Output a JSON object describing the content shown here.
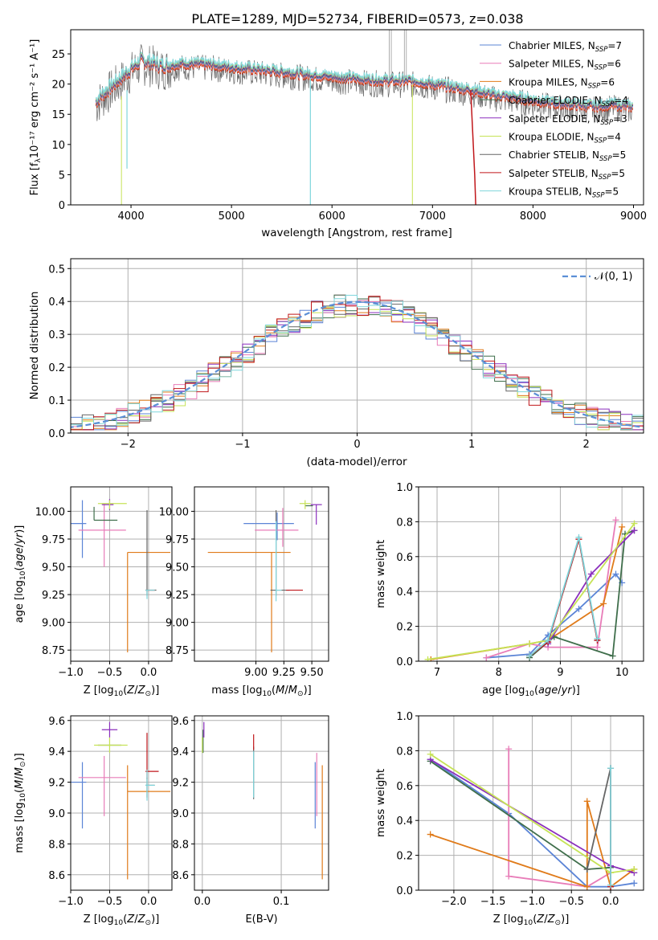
{
  "figure_title": "PLATE=1289, MJD=52734, FIBERID=0573, z=0.038",
  "colors": {
    "Chabrier MILES": "#5b84d6",
    "Salpeter MILES": "#e87cb8",
    "Kroupa MILES": "#e07b1a",
    "Chabrier ELODIE": "#3f6e4b",
    "Salpeter ELODIE": "#8b2fbd",
    "Kroupa ELODIE": "#c6e356",
    "Chabrier STELIB": "#666666",
    "Salpeter STELIB": "#c0171b",
    "Kroupa STELIB": "#7fd6dc",
    "grid": "#b0b0b0"
  },
  "chart_data": [
    {
      "type": "line",
      "xlabel": "wavelength [Angstrom, rest frame]",
      "ylabel": "Flux [fλ10⁻¹⁷ erg cm⁻² s⁻¹ A⁻¹]",
      "xlim": [
        3400,
        9100
      ],
      "ylim": [
        0,
        29
      ],
      "xticks": [
        4000,
        5000,
        6000,
        7000,
        8000,
        9000
      ],
      "yticks": [
        0,
        5,
        10,
        15,
        20,
        25
      ],
      "grid": false,
      "legend_position": "top-right",
      "legend": [
        {
          "name": "Chabrier MILES",
          "sub": "SSP",
          "n": "7"
        },
        {
          "name": "Salpeter MILES",
          "sub": "SSP",
          "n": "6"
        },
        {
          "name": "Kroupa MILES",
          "sub": "SSP",
          "n": "6"
        },
        {
          "name": "Chabrier ELODIE",
          "sub": "SSP",
          "n": "4"
        },
        {
          "name": "Salpeter ELODIE",
          "sub": "SSP",
          "n": "3"
        },
        {
          "name": "Kroupa ELODIE",
          "sub": "SSP",
          "n": "4"
        },
        {
          "name": "Chabrier STELIB",
          "sub": "SSP",
          "n": "5"
        },
        {
          "name": "Salpeter STELIB",
          "sub": "SSP",
          "n": "5"
        },
        {
          "name": "Kroupa STELIB",
          "sub": "SSP",
          "n": "5"
        }
      ],
      "spectrum_anchor": {
        "x": [
          3650,
          3700,
          3800,
          3900,
          4000,
          4100,
          4200,
          4300,
          4500,
          4800,
          5000,
          5200,
          5500,
          5800,
          6000,
          6300,
          6500,
          6800,
          7000,
          7200,
          7400,
          7600,
          7800,
          8000,
          8200,
          8400,
          8600,
          8800,
          9000
        ],
        "y": [
          17,
          18,
          19.5,
          21,
          22.5,
          23.8,
          23.6,
          23.0,
          23.4,
          23.2,
          22.8,
          22.5,
          22.0,
          21.5,
          21.2,
          20.8,
          20.6,
          20.5,
          20.0,
          19.5,
          19.0,
          18.2,
          17.8,
          17.3,
          16.8,
          16.6,
          16.3,
          16.6,
          16.2
        ]
      }
    },
    {
      "type": "histogram",
      "xlabel": "(data-model)/error",
      "ylabel": "Normed distribution",
      "xlim": [
        -2.5,
        2.5
      ],
      "ylim": [
        0,
        0.53
      ],
      "xticks": [
        -2,
        -1,
        0,
        1,
        2
      ],
      "yticks": [
        0.0,
        0.1,
        0.2,
        0.3,
        0.4,
        0.5
      ],
      "grid": true,
      "legend_position": "top-right",
      "legend": [
        "𝒩(0, 1)"
      ]
    },
    {
      "type": "errorbar",
      "xlabel": "Z [log10(Z/Z⊙)]",
      "ylabel": "age  [log10(age/yr)]",
      "xlim": [
        -1.0,
        0.3
      ],
      "ylim": [
        8.65,
        10.22
      ],
      "xticks": [
        -1.0,
        -0.5,
        0.0
      ],
      "yticks": [
        8.75,
        9.0,
        9.25,
        9.5,
        9.75,
        10.0
      ],
      "grid": true,
      "points": [
        {
          "series": "Chabrier MILES",
          "x": -0.85,
          "y": 9.89,
          "xerr": [
            0.85,
            0.05
          ],
          "yerr": [
            0.31,
            0.21
          ]
        },
        {
          "series": "Salpeter MILES",
          "x": -0.57,
          "y": 9.83,
          "xerr": [
            0.33,
            0.28
          ],
          "yerr": [
            0.33,
            0.24
          ]
        },
        {
          "series": "Kroupa MILES",
          "x": -0.27,
          "y": 9.63,
          "xerr": [
            0.0,
            0.55
          ],
          "yerr": [
            0.9,
            0.0
          ]
        },
        {
          "series": "Chabrier ELODIE",
          "x": -0.7,
          "y": 9.92,
          "xerr": [
            0.0,
            0.3
          ],
          "yerr": [
            0.0,
            0.12
          ]
        },
        {
          "series": "Salpeter ELODIE",
          "x": -0.5,
          "y": 10.06,
          "xerr": [
            0.1,
            0.05
          ],
          "yerr": [
            0.05,
            0.05
          ]
        },
        {
          "series": "Kroupa ELODIE",
          "x": -0.5,
          "y": 10.07,
          "xerr": [
            0.15,
            0.22
          ],
          "yerr": [
            0.05,
            0.03
          ]
        },
        {
          "series": "Chabrier STELIB",
          "x": -0.02,
          "y": 9.29,
          "xerr": [
            0.02,
            0.12
          ],
          "yerr": [
            0.05,
            0.72
          ]
        },
        {
          "series": "Salpeter STELIB",
          "x": -0.02,
          "y": 9.29,
          "xerr": [
            0.02,
            0.1
          ],
          "yerr": [
            0.0,
            0.0
          ]
        },
        {
          "series": "Kroupa STELIB",
          "x": -0.02,
          "y": 9.29,
          "xerr": [
            0.02,
            0.1
          ],
          "yerr": [
            0.08,
            0.0
          ]
        }
      ]
    },
    {
      "type": "errorbar",
      "xlabel": "mass [log10(M/M⊙)]",
      "ylabel": "",
      "xlim": [
        8.45,
        9.65
      ],
      "ylim": [
        8.65,
        10.22
      ],
      "xticks": [
        9.0,
        9.25,
        9.5
      ],
      "yticks": [
        8.75,
        9.0,
        9.25,
        9.5,
        9.75,
        10.0
      ],
      "grid": true,
      "points": [
        {
          "series": "Chabrier MILES",
          "x": 9.19,
          "y": 9.89,
          "xerr": [
            0.3,
            0.15
          ],
          "yerr": [
            0.15,
            0.1
          ]
        },
        {
          "series": "Salpeter MILES",
          "x": 9.24,
          "y": 9.83,
          "xerr": [
            0.25,
            0.14
          ],
          "yerr": [
            0.15,
            0.2
          ]
        },
        {
          "series": "Kroupa MILES",
          "x": 9.14,
          "y": 9.63,
          "xerr": [
            0.57,
            0.17
          ],
          "yerr": [
            0.9,
            0.0
          ]
        },
        {
          "series": "Chabrier ELODIE",
          "x": 9.44,
          "y": 10.05,
          "xerr": [
            0.0,
            0.07
          ],
          "yerr": [
            0.0,
            0.0
          ]
        },
        {
          "series": "Salpeter ELODIE",
          "x": 9.54,
          "y": 10.06,
          "xerr": [
            0.05,
            0.05
          ],
          "yerr": [
            0.18,
            0.0
          ]
        },
        {
          "series": "Kroupa ELODIE",
          "x": 9.44,
          "y": 10.07,
          "xerr": [
            0.05,
            0.05
          ],
          "yerr": [
            0.05,
            0.03
          ]
        },
        {
          "series": "Chabrier STELIB",
          "x": 9.18,
          "y": 9.29,
          "xerr": [
            0.05,
            0.12
          ],
          "yerr": [
            0.05,
            0.72
          ]
        },
        {
          "series": "Salpeter STELIB",
          "x": 9.27,
          "y": 9.29,
          "xerr": [
            0.0,
            0.15
          ],
          "yerr": [
            0.0,
            0.0
          ]
        },
        {
          "series": "Kroupa STELIB",
          "x": 9.18,
          "y": 9.29,
          "xerr": [
            0.0,
            0.05
          ],
          "yerr": [
            0.1,
            0.62
          ]
        }
      ]
    },
    {
      "type": "line",
      "xlabel": "age  [log10(age/yr)]",
      "ylabel": "mass weight",
      "xlim": [
        6.7,
        10.35
      ],
      "ylim": [
        0.0,
        1.0
      ],
      "xticks": [
        7,
        8,
        9,
        10
      ],
      "yticks": [
        0.0,
        0.2,
        0.4,
        0.6,
        0.8,
        1.0
      ],
      "grid": true,
      "series": [
        {
          "name": "Chabrier MILES",
          "x": [
            7.8,
            8.5,
            8.8,
            9.3,
            9.9,
            10.0
          ],
          "y": [
            0.02,
            0.04,
            0.15,
            0.3,
            0.5,
            0.45
          ]
        },
        {
          "name": "Salpeter MILES",
          "x": [
            7.8,
            8.5,
            8.8,
            9.6,
            9.9
          ],
          "y": [
            0.02,
            0.1,
            0.08,
            0.08,
            0.81
          ]
        },
        {
          "name": "Kroupa MILES",
          "x": [
            6.9,
            8.5,
            8.8,
            9.7,
            10.0
          ],
          "y": [
            0.01,
            0.1,
            0.12,
            0.33,
            0.77
          ]
        },
        {
          "name": "Chabrier ELODIE",
          "x": [
            8.5,
            8.9,
            9.85,
            10.05,
            10.2
          ],
          "y": [
            0.02,
            0.14,
            0.03,
            0.73,
            0.75
          ]
        },
        {
          "name": "Salpeter ELODIE",
          "x": [
            8.8,
            9.5,
            10.2
          ],
          "y": [
            0.1,
            0.5,
            0.75
          ]
        },
        {
          "name": "Kroupa ELODIE",
          "x": [
            6.85,
            8.5,
            8.8,
            10.2
          ],
          "y": [
            0.01,
            0.1,
            0.12,
            0.79
          ]
        },
        {
          "name": "Chabrier STELIB",
          "x": [
            8.5,
            8.8,
            9.3,
            9.6
          ],
          "y": [
            0.03,
            0.11,
            0.7,
            0.12
          ]
        },
        {
          "name": "Salpeter STELIB",
          "x": [
            8.5,
            8.8,
            9.3,
            9.6
          ],
          "y": [
            0.03,
            0.11,
            0.7,
            0.12
          ]
        },
        {
          "name": "Kroupa STELIB",
          "x": [
            8.5,
            8.8,
            9.3,
            9.6
          ],
          "y": [
            0.03,
            0.12,
            0.71,
            0.13
          ]
        }
      ]
    },
    {
      "type": "errorbar",
      "xlabel": "Z [log10(Z/Z⊙)]",
      "ylabel": "mass [log10(M/M⊙)]",
      "xlim": [
        -1.0,
        0.3
      ],
      "ylim": [
        8.5,
        9.63
      ],
      "xticks": [
        -1.0,
        -0.5,
        0.0
      ],
      "yticks": [
        8.6,
        8.8,
        9.0,
        9.2,
        9.4,
        9.6
      ],
      "grid": true,
      "points": [
        {
          "series": "Chabrier MILES",
          "x": -0.85,
          "y": 9.2,
          "xerr": [
            0.85,
            0.05
          ],
          "yerr": [
            0.3,
            0.13
          ]
        },
        {
          "series": "Salpeter MILES",
          "x": -0.57,
          "y": 9.23,
          "xerr": [
            0.33,
            0.28
          ],
          "yerr": [
            0.25,
            0.14
          ]
        },
        {
          "series": "Kroupa MILES",
          "x": -0.27,
          "y": 9.14,
          "xerr": [
            0.0,
            0.55
          ],
          "yerr": [
            0.57,
            0.17
          ]
        },
        {
          "series": "Chabrier ELODIE",
          "x": -0.5,
          "y": 9.44,
          "xerr": [
            0.15,
            0.15
          ],
          "yerr": [
            0.0,
            0.0
          ]
        },
        {
          "series": "Salpeter ELODIE",
          "x": -0.5,
          "y": 9.54,
          "xerr": [
            0.1,
            0.1
          ],
          "yerr": [
            0.05,
            0.05
          ]
        },
        {
          "series": "Kroupa ELODIE",
          "x": -0.5,
          "y": 9.44,
          "xerr": [
            0.2,
            0.23
          ],
          "yerr": [
            0.05,
            0.05
          ]
        },
        {
          "series": "Chabrier STELIB",
          "x": -0.02,
          "y": 9.18,
          "xerr": [
            0.02,
            0.1
          ],
          "yerr": [
            0.08,
            0.05
          ]
        },
        {
          "series": "Salpeter STELIB",
          "x": -0.02,
          "y": 9.27,
          "xerr": [
            0.02,
            0.15
          ],
          "yerr": [
            0.05,
            0.25
          ]
        },
        {
          "series": "Kroupa STELIB",
          "x": -0.02,
          "y": 9.18,
          "xerr": [
            0.02,
            0.1
          ],
          "yerr": [
            0.1,
            0.1
          ]
        }
      ]
    },
    {
      "type": "errorbar",
      "xlabel": "E(B-V)",
      "ylabel": "",
      "xlim": [
        -0.01,
        0.16
      ],
      "ylim": [
        8.5,
        9.63
      ],
      "xticks": [
        0.0,
        0.1
      ],
      "yticks": [
        8.6,
        8.8,
        9.0,
        9.2,
        9.4,
        9.6
      ],
      "grid": true,
      "points": [
        {
          "series": "Chabrier MILES",
          "x": 0.143,
          "y": 9.2,
          "xerr": [
            0,
            0
          ],
          "yerr": [
            0.3,
            0.13
          ]
        },
        {
          "series": "Salpeter MILES",
          "x": 0.145,
          "y": 9.23,
          "xerr": [
            0,
            0
          ],
          "yerr": [
            0.25,
            0.16
          ]
        },
        {
          "series": "Kroupa MILES",
          "x": 0.152,
          "y": 9.14,
          "xerr": [
            0,
            0
          ],
          "yerr": [
            0.57,
            0.17
          ]
        },
        {
          "series": "Chabrier ELODIE",
          "x": 0.001,
          "y": 9.44,
          "xerr": [
            0,
            0
          ],
          "yerr": [
            0.05,
            0.1
          ]
        },
        {
          "series": "Salpeter ELODIE",
          "x": 0.002,
          "y": 9.54,
          "xerr": [
            0,
            0
          ],
          "yerr": [
            0.05,
            0.05
          ]
        },
        {
          "series": "Kroupa ELODIE",
          "x": 0.0,
          "y": 9.44,
          "xerr": [
            0,
            0
          ],
          "yerr": [
            0.05,
            0.05
          ]
        },
        {
          "series": "Chabrier STELIB",
          "x": 0.065,
          "y": 9.18,
          "xerr": [
            0,
            0
          ],
          "yerr": [
            0.09,
            0.25
          ]
        },
        {
          "series": "Salpeter STELIB",
          "x": 0.065,
          "y": 9.41,
          "xerr": [
            0,
            0
          ],
          "yerr": [
            0.0,
            0.1
          ]
        },
        {
          "series": "Kroupa STELIB",
          "x": 0.065,
          "y": 9.2,
          "xerr": [
            0,
            0
          ],
          "yerr": [
            0.1,
            0.2
          ]
        }
      ]
    },
    {
      "type": "line",
      "xlabel": "Z [log10(Z/Z⊙)]",
      "ylabel": "mass weight",
      "xlim": [
        -2.45,
        0.42
      ],
      "ylim": [
        0.0,
        1.0
      ],
      "xticks": [
        -2.0,
        -1.5,
        -1.0,
        -0.5,
        0.0
      ],
      "yticks": [
        0.0,
        0.2,
        0.4,
        0.6,
        0.8,
        1.0
      ],
      "grid": true,
      "series": [
        {
          "name": "Chabrier MILES",
          "x": [
            -2.3,
            -1.3,
            -0.3,
            0.0,
            0.3
          ],
          "y": [
            0.75,
            0.44,
            0.02,
            0.02,
            0.04
          ]
        },
        {
          "name": "Salpeter MILES",
          "x": [
            -1.3,
            -1.3,
            -0.3,
            0.0
          ],
          "y": [
            0.81,
            0.08,
            0.02,
            0.1
          ]
        },
        {
          "name": "Kroupa MILES",
          "x": [
            -2.3,
            -0.3,
            -0.3,
            0.0,
            0.3
          ],
          "y": [
            0.32,
            0.02,
            0.51,
            0.02,
            0.12
          ]
        },
        {
          "name": "Chabrier ELODIE",
          "x": [
            -2.3,
            -0.3,
            0.0
          ],
          "y": [
            0.74,
            0.12,
            0.13
          ]
        },
        {
          "name": "Salpeter ELODIE",
          "x": [
            -2.3,
            0.0,
            0.3
          ],
          "y": [
            0.75,
            0.14,
            0.1
          ]
        },
        {
          "name": "Kroupa ELODIE",
          "x": [
            -2.3,
            0.0,
            0.3
          ],
          "y": [
            0.78,
            0.1,
            0.12
          ]
        },
        {
          "name": "Chabrier STELIB",
          "x": [
            -0.3,
            0.0,
            0.0
          ],
          "y": [
            0.12,
            0.7,
            0.02
          ]
        },
        {
          "name": "Salpeter STELIB",
          "x": [
            0.0,
            0.0
          ],
          "y": [
            0.7,
            0.02
          ]
        },
        {
          "name": "Kroupa STELIB",
          "x": [
            0.0,
            0.0,
            0.0
          ],
          "y": [
            0.7,
            0.03,
            0.7
          ]
        }
      ]
    }
  ]
}
